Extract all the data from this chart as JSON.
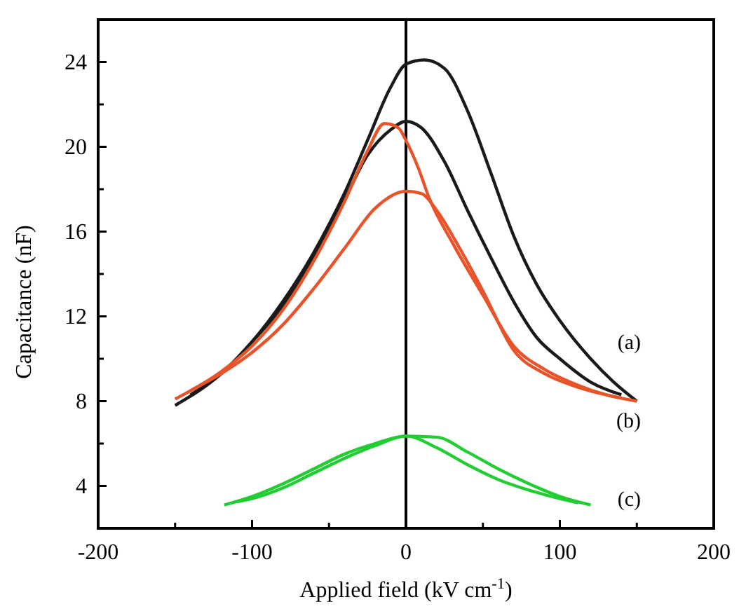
{
  "chart_data": {
    "type": "line",
    "xlabel": "Applied field (kV cm$^{-1}$)",
    "ylabel": "Capacitance (nF)",
    "xlim": [
      -200,
      200
    ],
    "ylim": [
      2,
      26
    ],
    "xticks": [
      -200,
      {
        "value": -150,
        "label": null
      },
      -100,
      {
        "value": -50,
        "label": null
      },
      0,
      {
        "value": 50,
        "label": null
      },
      100,
      {
        "value": 150,
        "label": null
      },
      200
    ],
    "yticks": [
      {
        "value": 2,
        "label": null
      },
      4,
      {
        "value": 6,
        "label": null
      },
      8,
      {
        "value": 10,
        "label": null
      },
      12,
      {
        "value": 14,
        "label": null
      },
      16,
      {
        "value": 18,
        "label": null
      },
      20,
      {
        "value": 22,
        "label": null
      },
      24
    ],
    "grid": false,
    "marker": "none",
    "line_style": "solid",
    "ref_lines": [
      {
        "axis": "x",
        "value": 0,
        "color": "#000000"
      }
    ],
    "series": [
      {
        "color": "#1a1a1a",
        "x": [
          -150,
          -120,
          -100,
          -80,
          -60,
          -40,
          -25,
          -10,
          0,
          12,
          25,
          40,
          55,
          70,
          85,
          100,
          120,
          135,
          150
        ],
        "values": [
          7.8,
          9.3,
          10.8,
          12.7,
          15,
          17.8,
          20.3,
          22.8,
          23.9,
          24.1,
          23.7,
          21.7,
          18.8,
          15.8,
          13.5,
          11.8,
          10,
          8.9,
          8
        ]
      },
      {
        "color": "#1a1a1a",
        "x": [
          -140,
          -120,
          -100,
          -80,
          -60,
          -40,
          -25,
          -10,
          0,
          10,
          25,
          40,
          55,
          70,
          85,
          100,
          120,
          140
        ],
        "values": [
          8.3,
          9.3,
          10.8,
          12.5,
          14.8,
          17.5,
          19.6,
          20.8,
          21.2,
          20.9,
          19.3,
          17,
          14.8,
          12.7,
          11,
          10,
          8.9,
          8.3
        ]
      },
      {
        "color": "#e8532a",
        "x": [
          -150,
          -120,
          -100,
          -80,
          -60,
          -40,
          -25,
          -14,
          -5,
          0,
          8,
          15,
          30,
          50,
          70,
          90,
          110,
          130,
          150
        ],
        "values": [
          8.1,
          9.4,
          10.6,
          12.3,
          14.6,
          17.4,
          19.8,
          21.1,
          20.9,
          20.3,
          19,
          17.6,
          15.5,
          13,
          10.6,
          9.5,
          8.8,
          8.3,
          8
        ]
      },
      {
        "color": "#e8532a",
        "x": [
          -140,
          -120,
          -100,
          -80,
          -60,
          -40,
          -20,
          0,
          10,
          20,
          35,
          50,
          70,
          90,
          110,
          130,
          140
        ],
        "values": [
          8.5,
          9.3,
          10.3,
          11.6,
          13.3,
          15.2,
          17.1,
          17.9,
          17.8,
          17,
          15.2,
          13.2,
          10.4,
          9.3,
          8.7,
          8.3,
          8.15
        ]
      },
      {
        "color": "#22cc33",
        "x": [
          -118,
          -100,
          -80,
          -60,
          -40,
          -20,
          0,
          20,
          40,
          60,
          80,
          100,
          120
        ],
        "values": [
          3.1,
          3.5,
          4.1,
          4.8,
          5.5,
          6,
          6.35,
          6.3,
          5.6,
          4.8,
          4.1,
          3.5,
          3.1
        ]
      },
      {
        "color": "#22cc33",
        "x": [
          -110,
          -100,
          -80,
          -60,
          -40,
          -20,
          0,
          20,
          40,
          60,
          80,
          100,
          112
        ],
        "values": [
          3.25,
          3.4,
          3.9,
          4.6,
          5.3,
          5.9,
          6.35,
          5.8,
          5,
          4.3,
          3.8,
          3.4,
          3.2
        ]
      }
    ],
    "annotations": [
      "(a)",
      "(b)",
      "(c)"
    ]
  }
}
